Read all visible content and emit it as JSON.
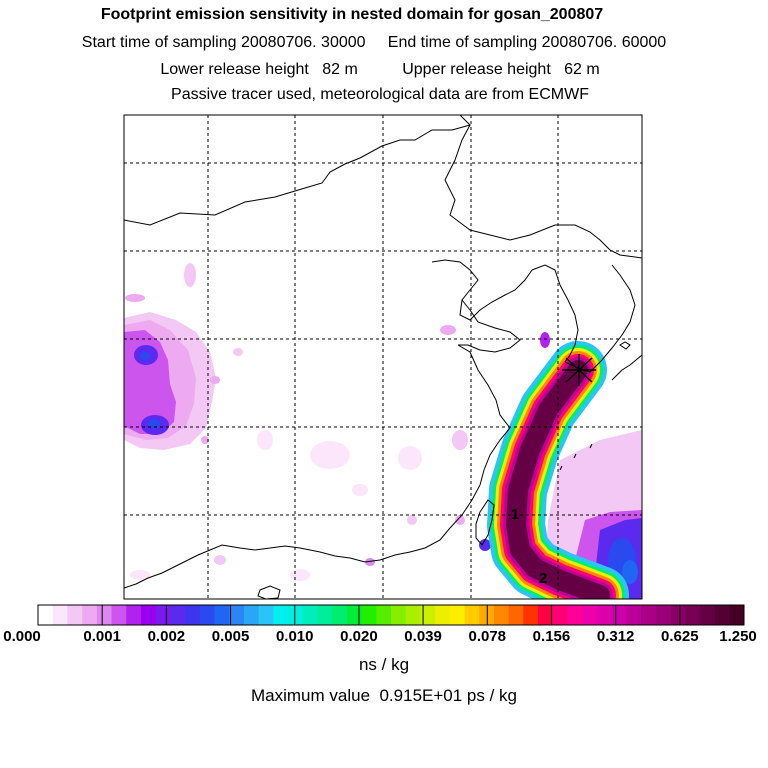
{
  "chart_data": {
    "type": "heatmap",
    "title": "Footprint emission sensitivity in nested domain for gosan_200807",
    "subtitle_lines": [
      "Start time of sampling 20080706. 30000     End time of sampling 20080706. 60000",
      "Lower release height   82 m          Upper release height   62 m",
      "Passive tracer used, meteorological data are from ECMWF"
    ],
    "colorbar_ticks": [
      "0.000",
      "0.001",
      "0.002",
      "0.005",
      "0.010",
      "0.020",
      "0.039",
      "0.078",
      "0.156",
      "0.312",
      "0.625",
      "1.250"
    ],
    "colorbar_colors": [
      "#ffffff",
      "#fbe6fb",
      "#f4c8f4",
      "#eeaaf0",
      "#dd88ee",
      "#cc55ee",
      "#b022ee",
      "#9a00ee",
      "#7a1aee",
      "#5a2aee",
      "#3e34f0",
      "#2a4af0",
      "#1f66f2",
      "#2a86f4",
      "#2aa6f6",
      "#2ac4f8",
      "#00f0f0",
      "#00eedd",
      "#00eebb",
      "#00ee99",
      "#00ee70",
      "#00ee3a",
      "#22ee00",
      "#55ee00",
      "#88ee00",
      "#aaee00",
      "#ccee00",
      "#eeee00",
      "#ffee00",
      "#ffcc00",
      "#ffaa00",
      "#ff8800",
      "#ff6600",
      "#ff3300",
      "#ff0044",
      "#ff0077",
      "#ff0099",
      "#ee00aa",
      "#dd00aa",
      "#cc00aa",
      "#bb0099",
      "#aa0088",
      "#990077",
      "#880066",
      "#770055",
      "#660044",
      "#550033",
      "#440022"
    ],
    "unit_label": "ns / kg",
    "max_value_label": "Maximum value  0.915E+01 ps / kg",
    "trajectory_labels": [
      "1",
      "2"
    ],
    "receptor_marker": "gosan-star",
    "colors": {
      "tracer_core": "#660044",
      "grid": "#000000",
      "coast": "#000000"
    }
  }
}
